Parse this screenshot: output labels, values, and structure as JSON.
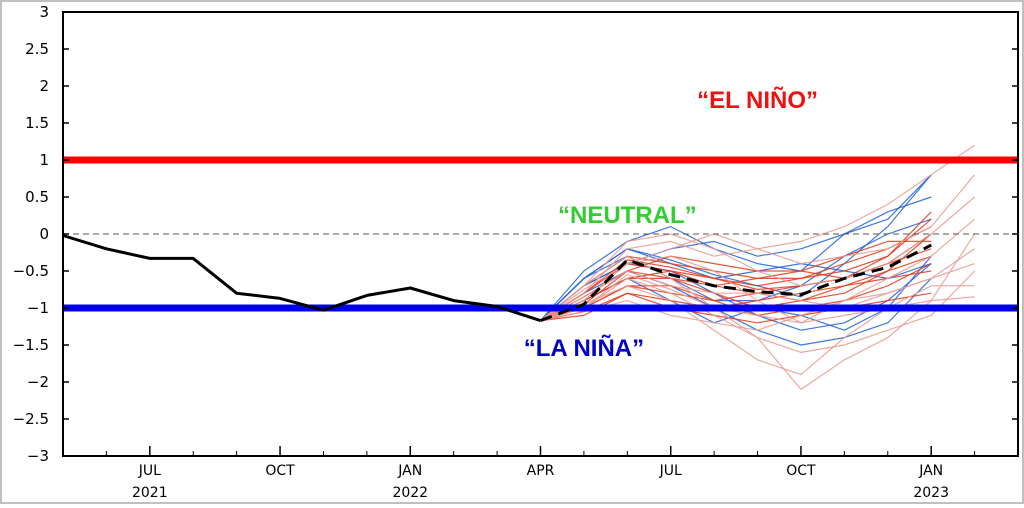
{
  "chart_data": {
    "type": "line",
    "title": "",
    "xlabel": "",
    "ylabel": "",
    "ylim": [
      -3,
      3
    ],
    "yticks": [
      3,
      2.5,
      2,
      1.5,
      1,
      0.5,
      0,
      -0.5,
      -1,
      -1.5,
      -2,
      -2.5,
      -3
    ],
    "ytick_labels": [
      "3",
      "2.5",
      "2",
      "1.5",
      "1",
      "0.5",
      "0",
      "−0.5",
      "−1",
      "−1.5",
      "−2",
      "−2.5",
      "−3"
    ],
    "xlim": [
      "2021-05",
      "2023-03"
    ],
    "xticks": [
      {
        "month": "2021-07",
        "label": "JUL",
        "year": "2021"
      },
      {
        "month": "2021-10",
        "label": "OCT",
        "year": ""
      },
      {
        "month": "2022-01",
        "label": "JAN",
        "year": "2022"
      },
      {
        "month": "2022-04",
        "label": "APR",
        "year": ""
      },
      {
        "month": "2022-07",
        "label": "JUL",
        "year": ""
      },
      {
        "month": "2022-10",
        "label": "OCT",
        "year": ""
      },
      {
        "month": "2023-01",
        "label": "JAN",
        "year": "2023"
      }
    ],
    "grid": false,
    "thresholds": [
      {
        "value": 1.0,
        "color": "#ff0000"
      },
      {
        "value": -1.0,
        "color": "#0000ee"
      },
      {
        "value": 0.0,
        "color": "#555555",
        "dashed": true
      }
    ],
    "annotations": [
      {
        "text": "“EL NIÑO”",
        "month": "2022-09",
        "y": 1.7,
        "color": "#ee1111"
      },
      {
        "text": "“NEUTRAL”",
        "month": "2022-06",
        "y": 0.15,
        "color": "#33cc33"
      },
      {
        "text": "“LA NIÑA”",
        "month": "2022-05",
        "y": -1.65,
        "color": "#0000cc"
      }
    ],
    "series": [
      {
        "color": "#000000",
        "dashed": false,
        "points": [
          [
            "2021-05",
            -0.02
          ],
          [
            "2021-06",
            -0.2
          ],
          [
            "2021-07",
            -0.33
          ],
          [
            "2021-08",
            -0.33
          ],
          [
            "2021-09",
            -0.8
          ],
          [
            "2021-10",
            -0.87
          ],
          [
            "2021-11",
            -1.03
          ],
          [
            "2021-12",
            -0.83
          ],
          [
            "2022-01",
            -0.73
          ],
          [
            "2022-02",
            -0.9
          ],
          [
            "2022-03",
            -0.98
          ],
          [
            "2022-04",
            -1.17
          ]
        ]
      },
      {
        "color": "#000000",
        "dashed": true,
        "points": [
          [
            "2022-04",
            -1.17
          ],
          [
            "2022-05",
            -0.95
          ],
          [
            "2022-06",
            -0.35
          ],
          [
            "2022-07",
            -0.55
          ],
          [
            "2022-08",
            -0.7
          ],
          [
            "2022-09",
            -0.78
          ],
          [
            "2022-10",
            -0.82
          ],
          [
            "2022-11",
            -0.6
          ],
          [
            "2022-12",
            -0.45
          ],
          [
            "2023-01",
            -0.15
          ]
        ]
      }
    ],
    "ensemble_members": {
      "months": [
        "2022-04",
        "2022-05",
        "2022-06",
        "2022-07",
        "2022-08",
        "2022-09",
        "2022-10",
        "2022-11",
        "2022-12",
        "2023-01",
        "2023-02"
      ],
      "members": [
        {
          "color": "#1f5fd9",
          "values": [
            -1.17,
            -0.6,
            -0.2,
            -0.35,
            -0.55,
            -0.7,
            -0.85,
            -0.4,
            0.1,
            0.8
          ]
        },
        {
          "color": "#1f5fd9",
          "values": [
            -1.17,
            -0.7,
            -0.4,
            -0.5,
            -0.8,
            -1.1,
            -1.3,
            -1.2,
            -0.9,
            -0.4
          ]
        },
        {
          "color": "#1f5fd9",
          "values": [
            -1.17,
            -0.5,
            -0.1,
            0.1,
            -0.2,
            -0.4,
            -0.5,
            0.0,
            0.3,
            0.5
          ]
        },
        {
          "color": "#1f5fd9",
          "values": [
            -1.17,
            -0.8,
            -0.5,
            -0.7,
            -1.0,
            -1.3,
            -1.5,
            -1.4,
            -1.2,
            -0.6
          ]
        },
        {
          "color": "#1f5fd9",
          "values": [
            -1.17,
            -0.6,
            -0.3,
            -0.6,
            -0.9,
            -0.9,
            -0.7,
            -0.3,
            0.0,
            0.2
          ]
        },
        {
          "color": "#1f5fd9",
          "values": [
            -1.17,
            -0.7,
            -0.4,
            -0.2,
            -0.1,
            -0.3,
            -0.2,
            0.0,
            0.2,
            0.8
          ]
        },
        {
          "color": "#1f5fd9",
          "values": [
            -1.17,
            -0.9,
            -0.6,
            -0.9,
            -1.2,
            -1.0,
            -1.1,
            -1.3,
            -1.0,
            -0.3
          ]
        },
        {
          "color": "#1f5fd9",
          "values": [
            -1.17,
            -0.6,
            -0.2,
            -0.4,
            -0.6,
            -0.5,
            -0.4,
            -0.5,
            -0.6,
            -0.4
          ]
        },
        {
          "color": "#e23a1a",
          "values": [
            -1.17,
            -0.9,
            -0.6,
            -0.5,
            -0.6,
            -0.7,
            -0.6,
            -0.5,
            -0.3,
            0.2
          ]
        },
        {
          "color": "#e23a1a",
          "values": [
            -1.17,
            -1.0,
            -0.7,
            -0.8,
            -0.9,
            -0.8,
            -0.7,
            -0.6,
            -0.4,
            -0.2
          ]
        },
        {
          "color": "#e23a1a",
          "values": [
            -1.17,
            -0.8,
            -0.4,
            -0.5,
            -0.7,
            -0.8,
            -0.9,
            -0.8,
            -0.5,
            0.0
          ]
        },
        {
          "color": "#e23a1a",
          "values": [
            -1.17,
            -1.05,
            -0.8,
            -0.9,
            -1.0,
            -0.9,
            -0.8,
            -0.7,
            -0.6,
            -0.5
          ]
        },
        {
          "color": "#e23a1a",
          "values": [
            -1.17,
            -0.7,
            -0.3,
            -0.4,
            -0.5,
            -0.6,
            -0.6,
            -0.4,
            -0.2,
            0.1
          ]
        },
        {
          "color": "#e23a1a",
          "values": [
            -1.17,
            -0.95,
            -0.5,
            -0.6,
            -0.8,
            -1.0,
            -0.9,
            -0.7,
            -0.5,
            -0.3
          ]
        },
        {
          "color": "#e23a1a",
          "values": [
            -1.17,
            -0.85,
            -0.5,
            -0.3,
            -0.4,
            -0.5,
            -0.5,
            -0.3,
            -0.1,
            -0.1
          ]
        },
        {
          "color": "#e23a1a",
          "values": [
            -1.17,
            -1.0,
            -0.7,
            -0.7,
            -0.9,
            -1.1,
            -1.0,
            -0.9,
            -0.7,
            -0.4
          ]
        },
        {
          "color": "#e23a1a",
          "values": [
            -1.17,
            -0.9,
            -0.6,
            -0.6,
            -0.7,
            -0.6,
            -0.5,
            -0.6,
            -0.4,
            0.0
          ]
        },
        {
          "color": "#e23a1a",
          "values": [
            -1.17,
            -1.1,
            -0.8,
            -1.0,
            -1.1,
            -1.2,
            -1.1,
            -1.0,
            -0.9,
            -0.8
          ]
        },
        {
          "color": "#e23a1a",
          "values": [
            -1.17,
            -0.8,
            -0.35,
            -0.45,
            -0.6,
            -0.75,
            -0.7,
            -0.6,
            -0.3,
            0.3
          ]
        },
        {
          "color": "#e89a8f",
          "values": [
            -1.17,
            -0.7,
            -0.3,
            -0.6,
            -1.0,
            -1.4,
            -2.1,
            -1.7,
            -1.4,
            -0.9,
            0.0
          ]
        },
        {
          "color": "#e89a8f",
          "values": [
            -1.17,
            -0.8,
            -0.2,
            -0.1,
            -0.3,
            -0.2,
            -0.1,
            0.1,
            0.4,
            0.8,
            1.2
          ]
        },
        {
          "color": "#e89a8f",
          "values": [
            -1.17,
            -1.0,
            -0.6,
            -0.8,
            -1.1,
            -1.4,
            -1.6,
            -1.5,
            -1.3,
            -1.1,
            -0.5
          ]
        },
        {
          "color": "#e89a8f",
          "values": [
            -1.17,
            -0.9,
            -0.4,
            -0.3,
            -0.5,
            -0.9,
            -1.2,
            -0.9,
            -0.6,
            -0.3,
            0.2
          ]
        },
        {
          "color": "#e89a8f",
          "values": [
            -1.17,
            -1.05,
            -0.9,
            -1.1,
            -1.2,
            -1.3,
            -1.1,
            -0.9,
            -0.8,
            -0.6,
            -0.4
          ]
        },
        {
          "color": "#e89a8f",
          "values": [
            -1.17,
            -0.7,
            -0.1,
            0.0,
            -0.2,
            -0.5,
            -0.7,
            -0.6,
            -0.4,
            0.0,
            0.5
          ]
        },
        {
          "color": "#e89a8f",
          "values": [
            -1.17,
            -0.95,
            -0.7,
            -0.9,
            -1.3,
            -1.7,
            -1.9,
            -1.4,
            -1.0,
            -0.7,
            -0.7
          ]
        },
        {
          "color": "#e89a8f",
          "values": [
            -1.17,
            -0.85,
            -0.5,
            -0.7,
            -0.8,
            -0.8,
            -0.9,
            -1.0,
            -0.8,
            -0.6,
            -0.2
          ]
        },
        {
          "color": "#e89a8f",
          "values": [
            -1.17,
            -0.75,
            -0.4,
            -0.2,
            0.0,
            -0.2,
            -0.4,
            -0.3,
            -0.2,
            0.1,
            0.8
          ]
        },
        {
          "color": "#e89a8f",
          "values": [
            -1.17,
            -1.0,
            -0.55,
            -0.75,
            -1.0,
            -1.1,
            -1.2,
            -1.1,
            -1.0,
            -0.9,
            -0.85
          ]
        }
      ]
    }
  }
}
